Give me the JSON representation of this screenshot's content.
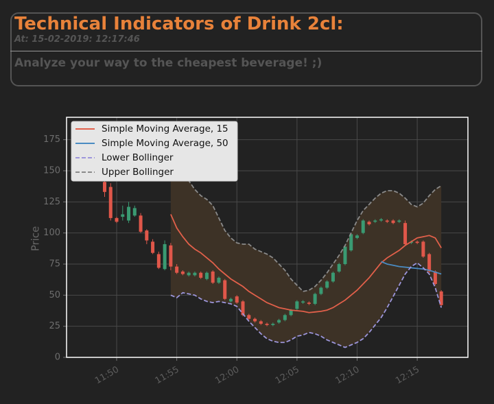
{
  "header": {
    "title": "Technical Indicators of Drink 2cl:",
    "timestamp": "At: 15-02-2019: 12:17:46",
    "tagline": "Analyze your way to the cheapest beverage! ;)"
  },
  "chart_data": {
    "type": "candlestick",
    "ylabel": "Price",
    "x": [
      "11:49:00",
      "11:49:30",
      "11:50:00",
      "11:50:30",
      "11:51:00",
      "11:51:30",
      "11:52:00",
      "11:52:30",
      "11:53:00",
      "11:53:30",
      "11:54:00",
      "11:54:30",
      "11:55:00",
      "11:55:30",
      "11:56:00",
      "11:56:30",
      "11:57:00",
      "11:57:30",
      "11:58:00",
      "11:58:30",
      "11:59:00",
      "11:59:30",
      "12:00:00",
      "12:00:30",
      "12:01:00",
      "12:01:30",
      "12:02:00",
      "12:02:30",
      "12:03:00",
      "12:03:30",
      "12:04:00",
      "12:04:30",
      "12:05:00",
      "12:05:30",
      "12:06:00",
      "12:06:30",
      "12:07:00",
      "12:07:30",
      "12:08:00",
      "12:08:30",
      "12:09:00",
      "12:09:30",
      "12:10:00",
      "12:10:30",
      "12:11:00",
      "12:11:30",
      "12:12:00",
      "12:12:30",
      "12:13:00",
      "12:13:30",
      "12:14:00",
      "12:14:30",
      "12:15:00",
      "12:15:30",
      "12:16:00",
      "12:16:30",
      "12:17:00"
    ],
    "candles": {
      "up_color": "#3a9a72",
      "down_color": "#e0574a",
      "open": [
        141,
        137,
        112,
        113,
        110,
        114,
        114,
        102,
        93,
        83,
        71,
        90,
        73,
        69,
        66,
        66,
        68,
        63,
        69,
        60,
        62,
        45,
        49,
        45,
        34,
        31,
        29,
        27,
        26,
        28,
        30,
        34,
        39,
        44,
        44,
        43,
        51,
        56,
        61,
        69,
        75,
        86,
        96,
        100,
        109,
        109,
        110,
        110,
        110,
        109,
        108,
        92,
        93,
        93,
        83,
        69,
        53
      ],
      "high": [
        142,
        140,
        113,
        122,
        125,
        122,
        116,
        103,
        95,
        85,
        94,
        92,
        75,
        70,
        69,
        69,
        69,
        69,
        70,
        65,
        63,
        48,
        50,
        46,
        35,
        32,
        30,
        28,
        28,
        31,
        35,
        39,
        46,
        46,
        45,
        52,
        57,
        62,
        69,
        76,
        90,
        100,
        99,
        111,
        110,
        111,
        112,
        111,
        111,
        111,
        110,
        94,
        94,
        94,
        84,
        70,
        54
      ],
      "low": [
        129,
        110,
        108,
        110,
        108,
        113,
        100,
        91,
        83,
        71,
        70,
        70,
        67,
        66,
        65,
        65,
        63,
        62,
        59,
        59,
        46,
        44,
        43,
        33,
        30,
        28,
        26,
        25,
        25,
        27,
        29,
        33,
        38,
        43,
        42,
        42,
        50,
        55,
        60,
        68,
        74,
        85,
        95,
        99,
        106,
        108,
        109,
        108,
        107,
        108,
        90,
        91,
        91,
        80,
        68,
        58,
        41
      ],
      "close": [
        133,
        112,
        109,
        115,
        121,
        120,
        101,
        94,
        84,
        72,
        91,
        73,
        68,
        67,
        68,
        68,
        64,
        68,
        60,
        64,
        47,
        47,
        44,
        34,
        31,
        29,
        27,
        26,
        27,
        30,
        34,
        38,
        45,
        45,
        43,
        51,
        56,
        61,
        68,
        75,
        89,
        99,
        98,
        110,
        107,
        110,
        111,
        109,
        108,
        110,
        91,
        93,
        92,
        81,
        69,
        59,
        42
      ]
    },
    "series": [
      {
        "name": "Simple Moving Average, 15",
        "color": "#e2604a",
        "dashed": false,
        "values": [
          null,
          null,
          null,
          null,
          null,
          null,
          null,
          null,
          null,
          null,
          null,
          115,
          104,
          97,
          91,
          87,
          84,
          80,
          76,
          71,
          67,
          63,
          60,
          57,
          53,
          50,
          47,
          44,
          42,
          40,
          39,
          38,
          37.5,
          37,
          36,
          36.5,
          37,
          38,
          40,
          43,
          46,
          50,
          54,
          59,
          64,
          70,
          76,
          80,
          83,
          86,
          90,
          93,
          96,
          97,
          98,
          96,
          88
        ]
      },
      {
        "name": "Simple Moving Average, 50",
        "color": "#4a8bc2",
        "dashed": false,
        "values": [
          null,
          null,
          null,
          null,
          null,
          null,
          null,
          null,
          null,
          null,
          null,
          null,
          null,
          null,
          null,
          null,
          null,
          null,
          null,
          null,
          null,
          null,
          null,
          null,
          null,
          null,
          null,
          null,
          null,
          null,
          null,
          null,
          null,
          null,
          null,
          null,
          null,
          null,
          null,
          null,
          null,
          null,
          null,
          null,
          null,
          null,
          77,
          75,
          74,
          73,
          72.5,
          72,
          71.5,
          71,
          70,
          68.5,
          67
        ]
      },
      {
        "name": "Lower Bollinger",
        "color": "#9d96dc",
        "dashed": true,
        "values": [
          null,
          null,
          null,
          null,
          null,
          null,
          null,
          null,
          null,
          null,
          null,
          50,
          48,
          52,
          51,
          50,
          47,
          45,
          44,
          45,
          44,
          43,
          41,
          35,
          29,
          24,
          19,
          15,
          13,
          12,
          12,
          14,
          17,
          18,
          20,
          19,
          17,
          14,
          12,
          10,
          8,
          10,
          12,
          15,
          20,
          26,
          32,
          40,
          49,
          58,
          67,
          73,
          76,
          72,
          67,
          56,
          40
        ]
      },
      {
        "name": "Upper Bollinger",
        "color": "#8a8a8a",
        "dashed": true,
        "values": [
          null,
          null,
          null,
          null,
          null,
          null,
          null,
          null,
          null,
          null,
          null,
          180,
          165,
          150,
          142,
          135,
          130,
          127,
          122,
          112,
          102,
          96,
          92,
          91,
          91,
          87,
          85,
          83,
          80,
          75,
          70,
          63,
          58,
          53,
          54,
          57,
          62,
          68,
          75,
          82,
          90,
          100,
          110,
          118,
          123,
          128,
          132,
          134,
          134,
          132,
          128,
          123,
          121,
          124,
          130,
          135,
          138
        ]
      }
    ],
    "band_color": "#3d3226",
    "xlim": [
      "11:45:50",
      "12:19:13"
    ],
    "xticks": [
      "11:50",
      "11:55",
      "12:00",
      "12:05",
      "12:10",
      "12:15"
    ],
    "ylim": [
      0,
      193
    ],
    "yticks": [
      0,
      25,
      50,
      75,
      100,
      125,
      150,
      175
    ],
    "grid": true,
    "legend": "upper left"
  }
}
